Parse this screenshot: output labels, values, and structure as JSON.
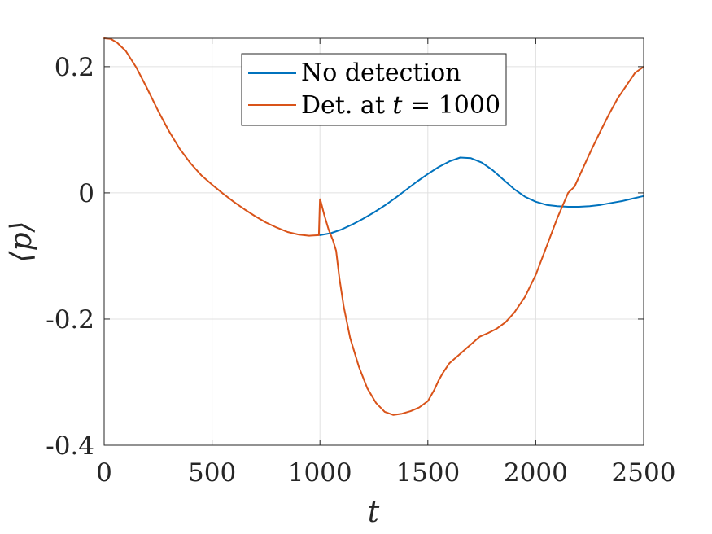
{
  "chart_data": {
    "type": "line",
    "xlabel": "t",
    "ylabel": "⟨p⟩",
    "xlim": [
      0,
      2500
    ],
    "ylim": [
      -0.4,
      0.245
    ],
    "xticks": [
      0,
      500,
      1000,
      1500,
      2000,
      2500
    ],
    "xtick_labels": [
      "0",
      "500",
      "1000",
      "1500",
      "2000",
      "2500"
    ],
    "yticks": [
      -0.4,
      -0.2,
      0,
      0.2
    ],
    "ytick_labels": [
      "-0.4",
      "-0.2",
      "0",
      "0.2"
    ],
    "grid": true,
    "legend_position": "top-center",
    "series": [
      {
        "name": "No detection",
        "color": "#0072BD",
        "x": [
          1000,
          1050,
          1100,
          1150,
          1200,
          1250,
          1300,
          1350,
          1400,
          1450,
          1500,
          1550,
          1600,
          1650,
          1700,
          1750,
          1800,
          1850,
          1900,
          1950,
          2000,
          2050,
          2100,
          2150,
          2200,
          2250,
          2300,
          2350,
          2400,
          2450,
          2500
        ],
        "y": [
          -0.067,
          -0.064,
          -0.058,
          -0.05,
          -0.041,
          -0.031,
          -0.02,
          -0.008,
          0.005,
          0.018,
          0.03,
          0.041,
          0.05,
          0.056,
          0.055,
          0.048,
          0.036,
          0.021,
          0.006,
          -0.006,
          -0.014,
          -0.019,
          -0.021,
          -0.022,
          -0.022,
          -0.021,
          -0.019,
          -0.016,
          -0.013,
          -0.009,
          -0.005
        ]
      },
      {
        "name": "Det. at t = 1000",
        "name_main": "Det. at ",
        "name_var": "t",
        "name_rest": " = 1000",
        "color": "#D95319",
        "x": [
          0,
          30,
          60,
          100,
          150,
          200,
          250,
          300,
          350,
          400,
          450,
          500,
          550,
          600,
          650,
          700,
          750,
          800,
          850,
          900,
          950,
          995,
          1000,
          1001,
          1020,
          1040,
          1060,
          1075,
          1090,
          1110,
          1140,
          1180,
          1220,
          1260,
          1300,
          1340,
          1380,
          1420,
          1460,
          1500,
          1530,
          1550,
          1570,
          1600,
          1650,
          1700,
          1740,
          1780,
          1820,
          1860,
          1900,
          1950,
          2000,
          2050,
          2100,
          2150,
          2180,
          2220,
          2260,
          2300,
          2340,
          2380,
          2420,
          2460,
          2500
        ],
        "y": [
          0.245,
          0.244,
          0.238,
          0.225,
          0.198,
          0.165,
          0.13,
          0.098,
          0.07,
          0.047,
          0.028,
          0.013,
          -0.001,
          -0.014,
          -0.026,
          -0.037,
          -0.047,
          -0.055,
          -0.062,
          -0.066,
          -0.068,
          -0.067,
          -0.01,
          -0.01,
          -0.035,
          -0.058,
          -0.075,
          -0.092,
          -0.135,
          -0.18,
          -0.23,
          -0.275,
          -0.31,
          -0.333,
          -0.347,
          -0.352,
          -0.35,
          -0.346,
          -0.34,
          -0.33,
          -0.312,
          -0.297,
          -0.285,
          -0.27,
          -0.255,
          -0.24,
          -0.228,
          -0.222,
          -0.215,
          -0.205,
          -0.19,
          -0.165,
          -0.13,
          -0.085,
          -0.04,
          0.0,
          0.01,
          0.04,
          0.07,
          0.098,
          0.125,
          0.15,
          0.17,
          0.19,
          0.2
        ]
      }
    ]
  }
}
